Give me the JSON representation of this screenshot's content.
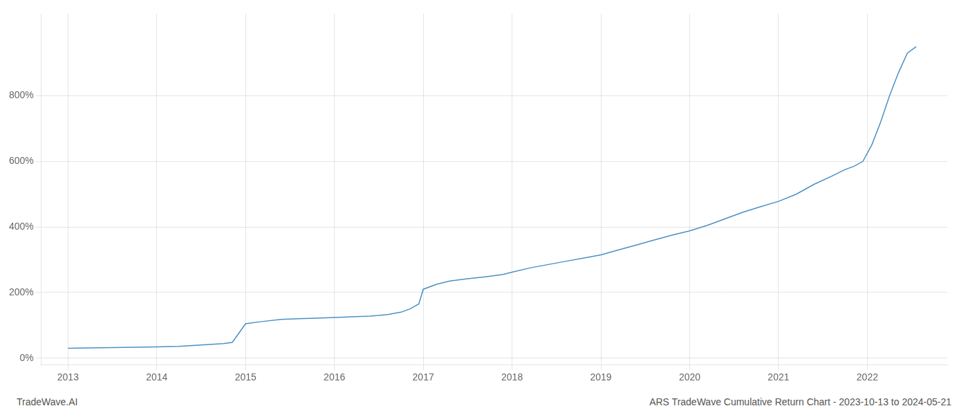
{
  "chart_data": {
    "type": "line",
    "annotations": [
      "TradeWave.AI",
      "ARS TradeWave Cumulative Return Chart - 2023-10-13 to 2024-05-21"
    ],
    "color": "#4a90c4",
    "x": [
      2013.0,
      2013.25,
      2013.5,
      2013.75,
      2014.0,
      2014.25,
      2014.5,
      2014.75,
      2014.85,
      2015.0,
      2015.2,
      2015.4,
      2015.6,
      2015.8,
      2016.0,
      2016.2,
      2016.4,
      2016.5,
      2016.6,
      2016.75,
      2016.85,
      2016.95,
      2017.0,
      2017.15,
      2017.3,
      2017.5,
      2017.7,
      2017.9,
      2018.0,
      2018.2,
      2018.4,
      2018.6,
      2018.8,
      2019.0,
      2019.2,
      2019.4,
      2019.6,
      2019.8,
      2020.0,
      2020.2,
      2020.4,
      2020.6,
      2020.8,
      2021.0,
      2021.2,
      2021.4,
      2021.6,
      2021.75,
      2021.85,
      2021.95,
      2022.05,
      2022.15,
      2022.25,
      2022.35,
      2022.45,
      2022.55
    ],
    "values": [
      30,
      31,
      32,
      33,
      34,
      36,
      40,
      44,
      48,
      105,
      112,
      118,
      120,
      122,
      124,
      126,
      128,
      130,
      133,
      140,
      150,
      165,
      210,
      225,
      235,
      242,
      248,
      255,
      262,
      275,
      285,
      295,
      305,
      315,
      330,
      345,
      360,
      375,
      388,
      405,
      425,
      445,
      462,
      478,
      500,
      530,
      555,
      575,
      585,
      600,
      650,
      720,
      800,
      870,
      930,
      950
    ],
    "xlim": [
      2012.7,
      2022.9
    ],
    "xticks": [
      2013,
      2014,
      2015,
      2016,
      2017,
      2018,
      2019,
      2020,
      2021,
      2022
    ],
    "ylim": [
      -20,
      1050
    ],
    "yticks": [
      {
        "value": 0,
        "label": "0%"
      },
      {
        "value": 200,
        "label": "200%"
      },
      {
        "value": 400,
        "label": "400%"
      },
      {
        "value": 600,
        "label": "600%"
      },
      {
        "value": 800,
        "label": "800%"
      }
    ],
    "grid": true
  }
}
